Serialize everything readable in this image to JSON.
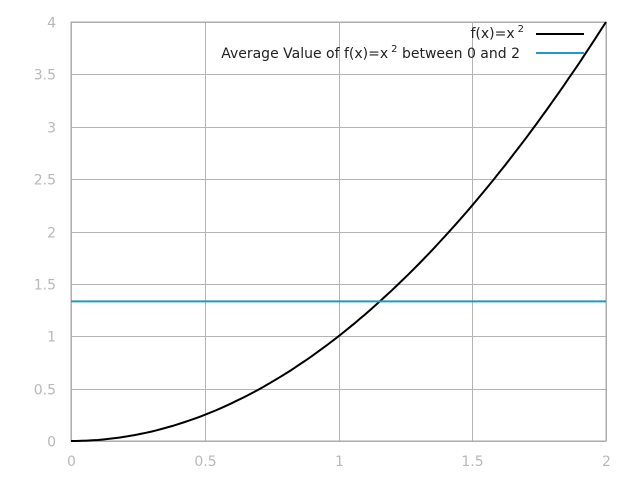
{
  "chart_data": {
    "type": "line",
    "title": "",
    "xlabel": "",
    "ylabel": "",
    "xlim": [
      0,
      2
    ],
    "ylim": [
      0,
      4
    ],
    "grid": true,
    "legend_position": "top-right",
    "x_ticks": [
      "0",
      "0.5",
      "1",
      "1.5",
      "2"
    ],
    "y_ticks": [
      "0",
      "0.5",
      "1",
      "1.5",
      "2",
      "2.5",
      "3",
      "3.5",
      "4"
    ],
    "series": [
      {
        "name": "f(x)=x^2",
        "legend_label": "f(x)=x",
        "legend_sup": "2",
        "color": "#000000",
        "x": [
          0,
          0.25,
          0.5,
          0.75,
          1,
          1.25,
          1.5,
          1.75,
          2
        ],
        "values": [
          0,
          0.0625,
          0.25,
          0.5625,
          1,
          1.5625,
          2.25,
          3.0625,
          4
        ]
      },
      {
        "name": "Average Value of f(x)=x^2 between 0 and 2",
        "legend_label_pre": "Average Value of f(x)=x",
        "legend_sup": "2",
        "legend_label_post": " between 0 and 2",
        "color": "#1a9bc0",
        "x": [
          0,
          2
        ],
        "values": [
          1.3333,
          1.3333
        ]
      }
    ]
  }
}
